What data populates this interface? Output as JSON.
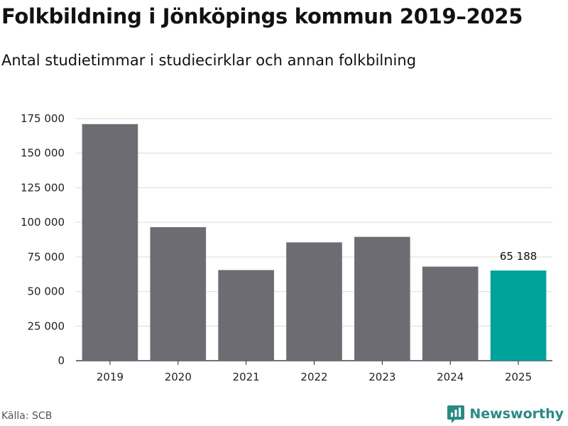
{
  "title": "Folkbildning i Jönköpings kommun 2019–2025",
  "subtitle": "Antal studietimmar i studiecirklar och annan folkbilning",
  "source": "Källa: SCB",
  "brand": "Newsworthy",
  "colors": {
    "bar": "#6d6c72",
    "highlight": "#00a39a",
    "grid": "#d9d9d9",
    "axis": "#222222",
    "brand": "#2a8a84"
  },
  "chart_data": {
    "type": "bar",
    "categories": [
      "2019",
      "2020",
      "2021",
      "2022",
      "2023",
      "2024",
      "2025"
    ],
    "values": [
      171000,
      96500,
      65500,
      85500,
      89500,
      68000,
      65188
    ],
    "highlight_index": 6,
    "data_labels": [
      {
        "index": 6,
        "text": "65 188"
      }
    ],
    "ylim": [
      0,
      175000
    ],
    "yticks": [
      0,
      25000,
      50000,
      75000,
      100000,
      125000,
      150000,
      175000
    ],
    "ytick_labels": [
      "0",
      "25 000",
      "50 000",
      "75 000",
      "100 000",
      "125 000",
      "150 000",
      "175 000"
    ],
    "grid": true,
    "xlabel": "",
    "ylabel": ""
  }
}
